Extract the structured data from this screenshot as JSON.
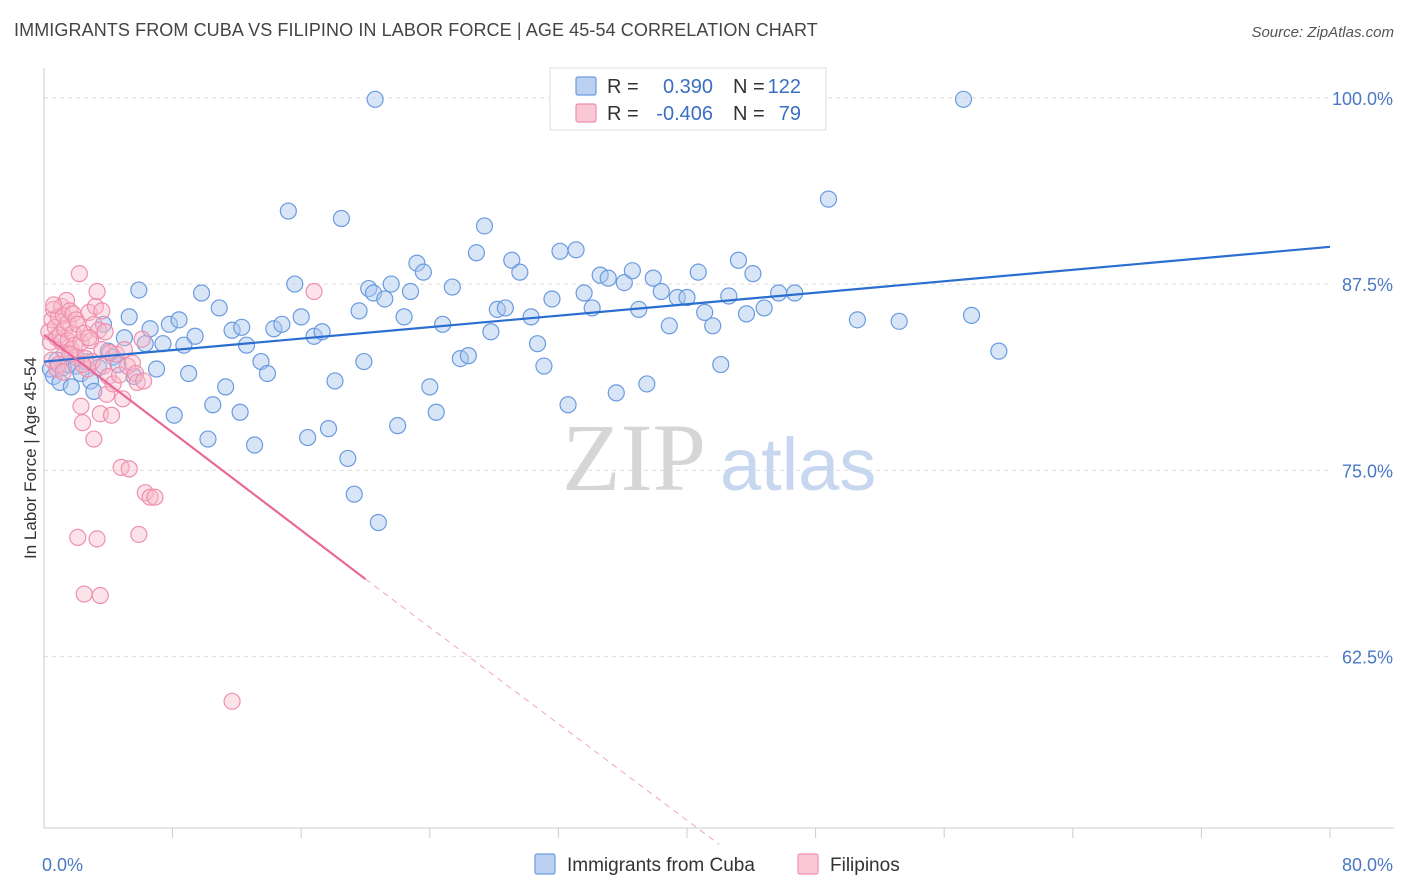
{
  "title": "IMMIGRANTS FROM CUBA VS FILIPINO IN LABOR FORCE | AGE 45-54 CORRELATION CHART",
  "source": "Source: ZipAtlas.com",
  "watermark": {
    "zip": "ZIP",
    "atlas": "atlas"
  },
  "colors": {
    "cuba_fill": "#a9c6ee",
    "cuba_stroke": "#6a9be0",
    "cuba_line": "#2a6fd0",
    "fil_fill": "#f7b9cb",
    "fil_stroke": "#ef8fae",
    "fil_line": "#e8689a",
    "grid": "#dddddd",
    "tick_label": "#4a78c4"
  },
  "legend": {
    "rows": [
      {
        "r_label": "R =",
        "r_value": "0.390",
        "n_label": "N =",
        "n_value": "122"
      },
      {
        "r_label": "R =",
        "r_value": "-0.406",
        "n_label": "N =",
        "n_value": "79"
      }
    ]
  },
  "chart_data": {
    "type": "scatter",
    "title": "IMMIGRANTS FROM CUBA VS FILIPINO IN LABOR FORCE | AGE 45-54 CORRELATION CHART",
    "xlabel": "",
    "ylabel": "In Labor Force | Age 45-54",
    "xlim": [
      0,
      80
    ],
    "ylim": [
      51,
      102
    ],
    "x_tick_labels": [
      {
        "value": 0,
        "label": "0.0%"
      },
      {
        "value": 80,
        "label": "80.0%"
      }
    ],
    "y_ticks": [
      {
        "value": 100,
        "label": "100.0%"
      },
      {
        "value": 87.5,
        "label": "87.5%"
      },
      {
        "value": 75,
        "label": "75.0%"
      },
      {
        "value": 62.5,
        "label": "62.5%"
      }
    ],
    "x_minor_ticks": [
      8,
      16,
      24,
      32,
      40,
      48,
      56,
      64,
      72,
      80
    ],
    "grid": true,
    "legend_position": "top-center",
    "series": [
      {
        "name": "Immigrants from Cuba",
        "points": [
          [
            0.4,
            81.8
          ],
          [
            0.6,
            81.3
          ],
          [
            0.8,
            82.4
          ],
          [
            1.0,
            80.9
          ],
          [
            1.2,
            81.9
          ],
          [
            1.5,
            82.1
          ],
          [
            1.7,
            80.6
          ],
          [
            2.0,
            82.0
          ],
          [
            2.3,
            81.5
          ],
          [
            2.6,
            82.3
          ],
          [
            2.9,
            81.0
          ],
          [
            3.1,
            80.3
          ],
          [
            3.4,
            81.9
          ],
          [
            3.7,
            84.8
          ],
          [
            4.0,
            83.0
          ],
          [
            4.3,
            82.6
          ],
          [
            4.6,
            82.1
          ],
          [
            5.0,
            83.9
          ],
          [
            5.3,
            85.3
          ],
          [
            5.6,
            81.3
          ],
          [
            5.9,
            87.1
          ],
          [
            6.3,
            83.5
          ],
          [
            6.6,
            84.5
          ],
          [
            7.0,
            81.8
          ],
          [
            7.4,
            83.5
          ],
          [
            7.8,
            84.8
          ],
          [
            8.1,
            78.7
          ],
          [
            8.4,
            85.1
          ],
          [
            8.7,
            83.4
          ],
          [
            9.0,
            81.5
          ],
          [
            9.4,
            84.0
          ],
          [
            9.8,
            86.9
          ],
          [
            10.2,
            77.1
          ],
          [
            10.5,
            79.4
          ],
          [
            10.9,
            85.9
          ],
          [
            11.3,
            80.6
          ],
          [
            11.7,
            84.4
          ],
          [
            12.2,
            78.9
          ],
          [
            12.6,
            83.4
          ],
          [
            13.1,
            76.7
          ],
          [
            13.5,
            82.3
          ],
          [
            13.9,
            81.5
          ],
          [
            14.3,
            84.5
          ],
          [
            14.8,
            84.8
          ],
          [
            15.2,
            92.4
          ],
          [
            15.6,
            87.5
          ],
          [
            16.0,
            85.3
          ],
          [
            16.4,
            77.2
          ],
          [
            16.8,
            84.0
          ],
          [
            17.3,
            84.3
          ],
          [
            17.7,
            77.8
          ],
          [
            18.1,
            81.0
          ],
          [
            18.5,
            91.9
          ],
          [
            18.9,
            75.8
          ],
          [
            19.3,
            73.4
          ],
          [
            19.6,
            85.7
          ],
          [
            19.9,
            82.3
          ],
          [
            20.2,
            87.2
          ],
          [
            20.5,
            86.9
          ],
          [
            20.8,
            71.5
          ],
          [
            21.2,
            86.5
          ],
          [
            21.6,
            87.5
          ],
          [
            22.0,
            78.0
          ],
          [
            22.4,
            85.3
          ],
          [
            22.8,
            87.0
          ],
          [
            23.2,
            88.9
          ],
          [
            23.6,
            88.3
          ],
          [
            24.0,
            80.6
          ],
          [
            24.4,
            78.9
          ],
          [
            24.8,
            84.8
          ],
          [
            25.4,
            87.3
          ],
          [
            25.9,
            82.5
          ],
          [
            26.4,
            82.7
          ],
          [
            26.9,
            89.6
          ],
          [
            27.4,
            91.4
          ],
          [
            27.8,
            84.3
          ],
          [
            28.2,
            85.8
          ],
          [
            28.7,
            85.9
          ],
          [
            29.1,
            89.1
          ],
          [
            29.6,
            88.3
          ],
          [
            30.3,
            85.3
          ],
          [
            30.7,
            83.5
          ],
          [
            31.1,
            82.0
          ],
          [
            31.6,
            86.5
          ],
          [
            32.1,
            89.7
          ],
          [
            32.6,
            79.4
          ],
          [
            33.1,
            89.8
          ],
          [
            33.6,
            86.9
          ],
          [
            34.1,
            85.9
          ],
          [
            34.6,
            88.1
          ],
          [
            35.1,
            87.9
          ],
          [
            35.6,
            80.2
          ],
          [
            36.1,
            87.6
          ],
          [
            36.6,
            88.4
          ],
          [
            37.0,
            85.8
          ],
          [
            37.5,
            80.8
          ],
          [
            37.9,
            87.9
          ],
          [
            38.4,
            87.0
          ],
          [
            38.9,
            84.7
          ],
          [
            39.4,
            86.6
          ],
          [
            40.0,
            86.6
          ],
          [
            40.7,
            88.3
          ],
          [
            41.1,
            85.6
          ],
          [
            41.6,
            84.7
          ],
          [
            42.1,
            82.1
          ],
          [
            42.6,
            86.7
          ],
          [
            43.2,
            89.1
          ],
          [
            43.7,
            85.5
          ],
          [
            44.1,
            88.2
          ],
          [
            44.8,
            85.9
          ],
          [
            45.7,
            86.9
          ],
          [
            46.7,
            86.9
          ],
          [
            48.8,
            93.2
          ],
          [
            50.6,
            85.1
          ],
          [
            53.2,
            85.0
          ],
          [
            57.7,
            85.4
          ],
          [
            59.4,
            83.0
          ],
          [
            20.6,
            99.9
          ],
          [
            57.2,
            99.9
          ],
          [
            12.3,
            84.6
          ]
        ]
      },
      {
        "name": "Filipinos",
        "points": [
          [
            0.3,
            84.3
          ],
          [
            0.4,
            83.6
          ],
          [
            0.5,
            85.1
          ],
          [
            0.5,
            82.4
          ],
          [
            0.6,
            85.8
          ],
          [
            0.7,
            84.6
          ],
          [
            0.8,
            83.9
          ],
          [
            0.8,
            81.8
          ],
          [
            0.9,
            85.3
          ],
          [
            1.0,
            84.1
          ],
          [
            1.1,
            86.0
          ],
          [
            1.1,
            83.6
          ],
          [
            1.2,
            85.4
          ],
          [
            1.3,
            84.5
          ],
          [
            1.3,
            82.9
          ],
          [
            1.4,
            86.4
          ],
          [
            1.5,
            83.7
          ],
          [
            1.5,
            84.9
          ],
          [
            1.6,
            85.7
          ],
          [
            1.7,
            83.1
          ],
          [
            1.8,
            85.5
          ],
          [
            1.8,
            84.2
          ],
          [
            1.9,
            83.4
          ],
          [
            2.0,
            85.1
          ],
          [
            2.0,
            82.6
          ],
          [
            2.1,
            84.8
          ],
          [
            2.2,
            88.2
          ],
          [
            2.3,
            83.6
          ],
          [
            2.3,
            79.3
          ],
          [
            2.4,
            78.2
          ],
          [
            2.5,
            84.2
          ],
          [
            2.6,
            82.5
          ],
          [
            2.7,
            81.8
          ],
          [
            2.8,
            85.6
          ],
          [
            2.9,
            83.7
          ],
          [
            3.0,
            82.3
          ],
          [
            3.1,
            84.8
          ],
          [
            3.1,
            77.1
          ],
          [
            3.2,
            86.0
          ],
          [
            3.3,
            87.0
          ],
          [
            3.4,
            84.4
          ],
          [
            3.5,
            78.8
          ],
          [
            3.6,
            83.1
          ],
          [
            3.7,
            82.0
          ],
          [
            3.8,
            84.3
          ],
          [
            3.9,
            80.1
          ],
          [
            4.0,
            81.3
          ],
          [
            4.2,
            78.7
          ],
          [
            4.3,
            80.8
          ],
          [
            4.5,
            82.8
          ],
          [
            4.7,
            81.4
          ],
          [
            4.8,
            75.2
          ],
          [
            5.0,
            83.1
          ],
          [
            5.2,
            82.0
          ],
          [
            5.3,
            75.1
          ],
          [
            5.5,
            82.2
          ],
          [
            5.7,
            81.5
          ],
          [
            5.9,
            70.7
          ],
          [
            6.1,
            83.8
          ],
          [
            6.3,
            73.5
          ],
          [
            6.6,
            73.2
          ],
          [
            6.9,
            73.2
          ],
          [
            2.1,
            70.5
          ],
          [
            3.3,
            70.4
          ],
          [
            2.5,
            66.7
          ],
          [
            3.5,
            66.6
          ],
          [
            16.8,
            87.0
          ],
          [
            11.7,
            59.5
          ],
          [
            0.9,
            82.1
          ],
          [
            1.6,
            82.8
          ],
          [
            2.8,
            83.9
          ],
          [
            4.1,
            82.9
          ],
          [
            0.6,
            86.1
          ],
          [
            1.2,
            81.6
          ],
          [
            2.4,
            82.1
          ],
          [
            3.6,
            85.7
          ],
          [
            4.9,
            79.8
          ],
          [
            5.8,
            80.9
          ],
          [
            6.2,
            81.0
          ]
        ]
      }
    ],
    "trend_lines": [
      {
        "series": "Immigrants from Cuba",
        "from": [
          0,
          82.3
        ],
        "to": [
          80,
          90.0
        ]
      },
      {
        "series": "Filipinos",
        "solid_from": [
          0,
          84.1
        ],
        "solid_to": [
          20,
          67.7
        ],
        "dashed_to": [
          42,
          49.9
        ]
      }
    ]
  }
}
